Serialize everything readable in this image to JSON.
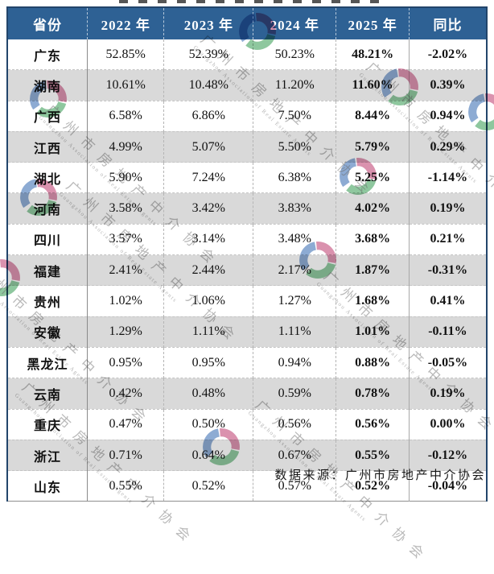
{
  "table": {
    "columns": [
      "省份",
      "2022 年",
      "2023 年",
      "2024 年",
      "2025 年",
      "同比"
    ],
    "rows": [
      [
        "广东",
        "52.85%",
        "52.39%",
        "50.23%",
        "48.21%",
        "-2.02%"
      ],
      [
        "湖南",
        "10.61%",
        "10.48%",
        "11.20%",
        "11.60%",
        "0.39%"
      ],
      [
        "广西",
        "6.58%",
        "6.86%",
        "7.50%",
        "8.44%",
        "0.94%"
      ],
      [
        "江西",
        "4.99%",
        "5.07%",
        "5.50%",
        "5.79%",
        "0.29%"
      ],
      [
        "湖北",
        "5.90%",
        "7.24%",
        "6.38%",
        "5.25%",
        "-1.14%"
      ],
      [
        "河南",
        "3.58%",
        "3.42%",
        "3.83%",
        "4.02%",
        "0.19%"
      ],
      [
        "四川",
        "3.57%",
        "3.14%",
        "3.48%",
        "3.68%",
        "0.21%"
      ],
      [
        "福建",
        "2.41%",
        "2.44%",
        "2.17%",
        "1.87%",
        "-0.31%"
      ],
      [
        "贵州",
        "1.02%",
        "1.06%",
        "1.27%",
        "1.68%",
        "0.41%"
      ],
      [
        "安徽",
        "1.29%",
        "1.11%",
        "1.11%",
        "1.01%",
        "-0.11%"
      ],
      [
        "黑龙江",
        "0.95%",
        "0.95%",
        "0.94%",
        "0.88%",
        "-0.05%"
      ],
      [
        "云南",
        "0.42%",
        "0.48%",
        "0.59%",
        "0.78%",
        "0.19%"
      ],
      [
        "重庆",
        "0.47%",
        "0.50%",
        "0.56%",
        "0.56%",
        "0.00%"
      ],
      [
        "浙江",
        "0.71%",
        "0.64%",
        "0.67%",
        "0.55%",
        "-0.12%"
      ],
      [
        "山东",
        "0.55%",
        "0.52%",
        "0.57%",
        "0.52%",
        "-0.04%"
      ]
    ]
  },
  "footer": {
    "source": "数据来源：广州市房地产中介协会"
  },
  "watermark": {
    "cn": "广州市房地产中介协会",
    "en": "Guangzhou Association of Real Estate Agents",
    "logo_colors": {
      "blue": "#4273b6",
      "green": "#43a25e",
      "pink": "#c24a78"
    }
  },
  "colors": {
    "header_bg": "#2e6194",
    "header_text": "#ffffff",
    "row_alt_bg": "#d9d9d9",
    "outer_border": "#22456b"
  },
  "chart_data": {
    "type": "table",
    "title": "",
    "unit": "%",
    "categories": [
      "广东",
      "湖南",
      "广西",
      "江西",
      "湖北",
      "河南",
      "四川",
      "福建",
      "贵州",
      "安徽",
      "黑龙江",
      "云南",
      "重庆",
      "浙江",
      "山东"
    ],
    "series": [
      {
        "name": "2022年",
        "values": [
          52.85,
          10.61,
          6.58,
          4.99,
          5.9,
          3.58,
          3.57,
          2.41,
          1.02,
          1.29,
          0.95,
          0.42,
          0.47,
          0.71,
          0.55
        ]
      },
      {
        "name": "2023年",
        "values": [
          52.39,
          10.48,
          6.86,
          5.07,
          7.24,
          3.42,
          3.14,
          2.44,
          1.06,
          1.11,
          0.95,
          0.48,
          0.5,
          0.64,
          0.52
        ]
      },
      {
        "name": "2024年",
        "values": [
          50.23,
          11.2,
          7.5,
          5.5,
          6.38,
          3.83,
          3.48,
          2.17,
          1.27,
          1.11,
          0.94,
          0.59,
          0.56,
          0.67,
          0.57
        ]
      },
      {
        "name": "2025年",
        "values": [
          48.21,
          11.6,
          8.44,
          5.79,
          5.25,
          4.02,
          3.68,
          1.87,
          1.68,
          1.01,
          0.88,
          0.78,
          0.56,
          0.55,
          0.52
        ]
      },
      {
        "name": "同比",
        "values": [
          -2.02,
          0.39,
          0.94,
          0.29,
          -1.14,
          0.19,
          0.21,
          -0.31,
          0.41,
          -0.11,
          -0.05,
          0.19,
          0.0,
          -0.12,
          -0.04
        ]
      }
    ],
    "source_note": "数据来源：广州市房地产中介协会"
  }
}
